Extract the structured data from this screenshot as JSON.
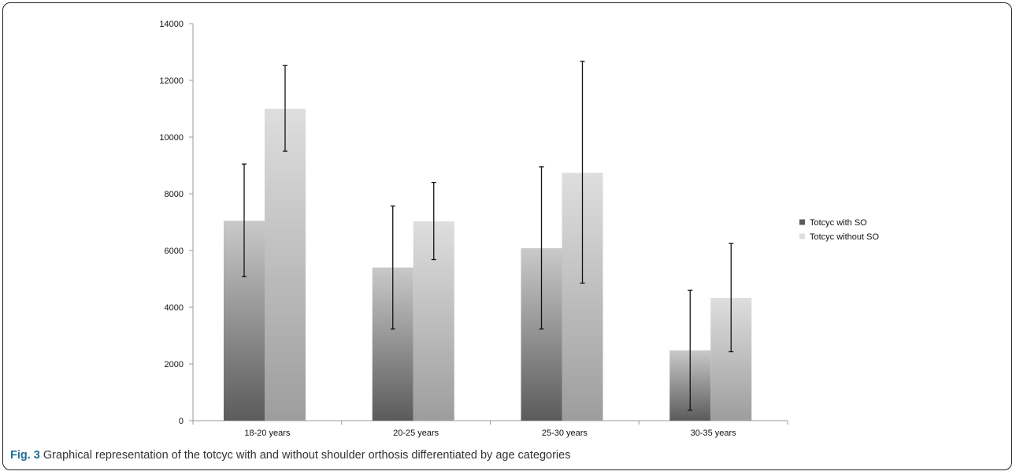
{
  "chart_data": {
    "type": "bar",
    "categories": [
      "18-20 years",
      "20-25 years",
      "25-30 years",
      "30-35 years"
    ],
    "series": [
      {
        "name": "Totcyc with SO",
        "values": [
          7050,
          5400,
          6080,
          2480
        ],
        "error_low": [
          5080,
          3230,
          3230,
          370
        ],
        "error_high": [
          9050,
          7570,
          8950,
          4600
        ]
      },
      {
        "name": "Totcyc without SO",
        "values": [
          11000,
          7030,
          8740,
          4330
        ],
        "error_low": [
          9500,
          5680,
          4850,
          2430
        ],
        "error_high": [
          12520,
          8400,
          12670,
          6250
        ]
      }
    ],
    "ylim": [
      0,
      14000
    ],
    "yticks": [
      0,
      2000,
      4000,
      6000,
      8000,
      10000,
      12000,
      14000
    ],
    "grid": false,
    "legend_position": "right",
    "colors": {
      "series0_top": "#c9c9c9",
      "series0_bottom": "#5b5b5b",
      "series1_top": "#dedede",
      "series1_bottom": "#9d9d9d",
      "error_bar": "#111111",
      "axis": "#9a9a9a"
    }
  },
  "caption": {
    "label": "Fig. 3",
    "text": " Graphical representation of the totcyc with and without shoulder orthosis differentiated by age categories"
  }
}
